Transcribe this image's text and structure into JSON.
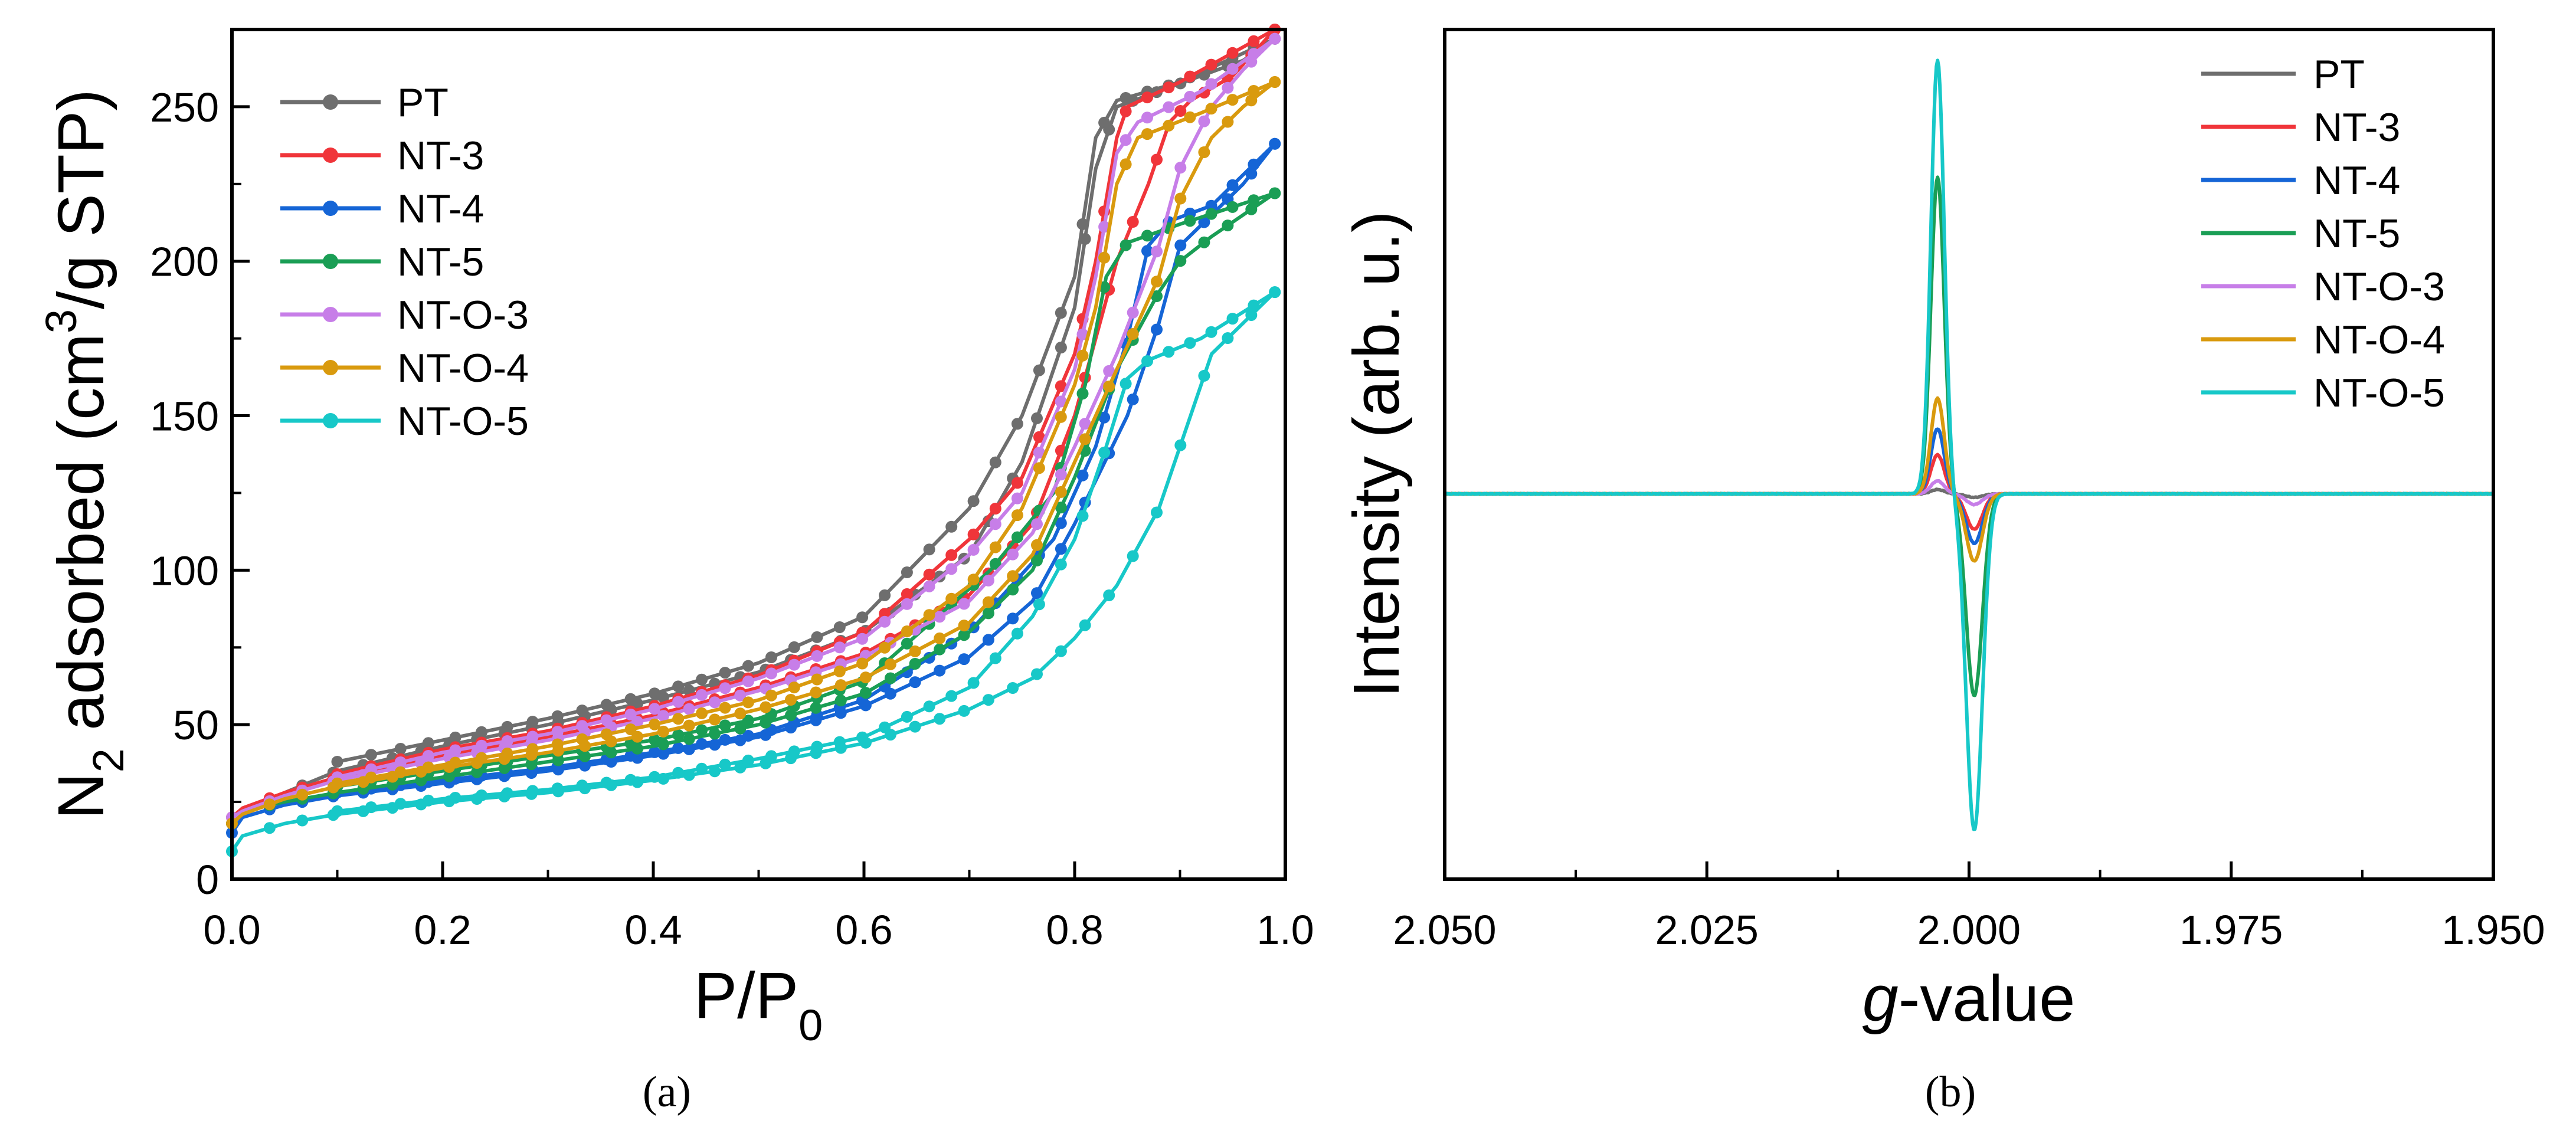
{
  "chart_data": [
    {
      "panel": "(a)",
      "type": "line",
      "title": "",
      "xlabel": "P/P",
      "xlabel_sub": "0",
      "ylabel_prefix": "N",
      "ylabel_sub": "2",
      "ylabel_mid": " adsorbed (cm",
      "ylabel_sup": "3",
      "ylabel_suffix": "/g STP)",
      "xlim": [
        0,
        1.0
      ],
      "ylim": [
        0,
        275
      ],
      "xticks": [
        "0.0",
        "0.2",
        "0.4",
        "0.6",
        "0.8",
        "1.0"
      ],
      "yticks": [
        "0",
        "50",
        "100",
        "150",
        "200",
        "250"
      ],
      "markers": true,
      "legend_position": "top-left",
      "series": [
        {
          "name": "PT",
          "color": "#6e6e6e",
          "adsorption": [
            [
              0,
              18
            ],
            [
              0.01,
              22
            ],
            [
              0.05,
              28
            ],
            [
              0.1,
              35
            ],
            [
              0.2,
              43
            ],
            [
              0.3,
              50
            ],
            [
              0.4,
              58
            ],
            [
              0.5,
              67
            ],
            [
              0.6,
              80
            ],
            [
              0.7,
              105
            ],
            [
              0.75,
              135
            ],
            [
              0.8,
              185
            ],
            [
              0.82,
              230
            ],
            [
              0.84,
              250
            ],
            [
              0.88,
              255
            ],
            [
              0.92,
              260
            ],
            [
              0.96,
              265
            ],
            [
              0.99,
              272
            ]
          ],
          "desorption": [
            [
              0.99,
              272
            ],
            [
              0.9,
              258
            ],
            [
              0.84,
              252
            ],
            [
              0.82,
              240
            ],
            [
              0.8,
              195
            ],
            [
              0.75,
              150
            ],
            [
              0.7,
              120
            ],
            [
              0.6,
              85
            ],
            [
              0.5,
              70
            ],
            [
              0.4,
              60
            ],
            [
              0.3,
              52
            ],
            [
              0.2,
              45
            ],
            [
              0.1,
              38
            ]
          ]
        },
        {
          "name": "NT-3",
          "color": "#f0353a",
          "adsorption": [
            [
              0,
              20
            ],
            [
              0.01,
              23
            ],
            [
              0.05,
              28
            ],
            [
              0.1,
              33
            ],
            [
              0.2,
              40
            ],
            [
              0.3,
              46
            ],
            [
              0.4,
              53
            ],
            [
              0.5,
              62
            ],
            [
              0.6,
              73
            ],
            [
              0.7,
              92
            ],
            [
              0.76,
              115
            ],
            [
              0.8,
              150
            ],
            [
              0.84,
              200
            ],
            [
              0.87,
              225
            ],
            [
              0.89,
              245
            ],
            [
              0.91,
              252
            ],
            [
              0.95,
              260
            ],
            [
              0.99,
              275
            ]
          ],
          "desorption": [
            [
              0.99,
              275
            ],
            [
              0.9,
              258
            ],
            [
              0.85,
              250
            ],
            [
              0.84,
              240
            ],
            [
              0.82,
              200
            ],
            [
              0.8,
              170
            ],
            [
              0.75,
              130
            ],
            [
              0.7,
              110
            ],
            [
              0.6,
              80
            ],
            [
              0.5,
              66
            ],
            [
              0.4,
              56
            ],
            [
              0.3,
              48
            ],
            [
              0.2,
              42
            ],
            [
              0.1,
              34
            ]
          ]
        },
        {
          "name": "NT-4",
          "color": "#1565d6",
          "adsorption": [
            [
              0,
              15
            ],
            [
              0.01,
              20
            ],
            [
              0.05,
              24
            ],
            [
              0.1,
              27
            ],
            [
              0.2,
              31
            ],
            [
              0.3,
              35
            ],
            [
              0.4,
              40
            ],
            [
              0.5,
              46
            ],
            [
              0.6,
              56
            ],
            [
              0.7,
              72
            ],
            [
              0.76,
              90
            ],
            [
              0.8,
              115
            ],
            [
              0.85,
              150
            ],
            [
              0.88,
              180
            ],
            [
              0.9,
              205
            ],
            [
              0.93,
              215
            ],
            [
              0.96,
              225
            ],
            [
              0.99,
              238
            ]
          ],
          "desorption": [
            [
              0.99,
              238
            ],
            [
              0.93,
              218
            ],
            [
              0.89,
              213
            ],
            [
              0.87,
              205
            ],
            [
              0.85,
              175
            ],
            [
              0.82,
              140
            ],
            [
              0.78,
              110
            ],
            [
              0.7,
              80
            ],
            [
              0.6,
              58
            ],
            [
              0.5,
              47
            ],
            [
              0.4,
              41
            ],
            [
              0.3,
              36
            ],
            [
              0.2,
              32
            ],
            [
              0.1,
              28
            ]
          ]
        },
        {
          "name": "NT-5",
          "color": "#1a9e55",
          "adsorption": [
            [
              0,
              18
            ],
            [
              0.01,
              22
            ],
            [
              0.05,
              25
            ],
            [
              0.1,
              28
            ],
            [
              0.2,
              33
            ],
            [
              0.3,
              38
            ],
            [
              0.4,
              43
            ],
            [
              0.5,
              50
            ],
            [
              0.6,
              60
            ],
            [
              0.7,
              80
            ],
            [
              0.76,
              100
            ],
            [
              0.8,
              130
            ],
            [
              0.84,
              165
            ],
            [
              0.88,
              190
            ],
            [
              0.9,
              200
            ],
            [
              0.93,
              208
            ],
            [
              0.96,
              215
            ],
            [
              0.99,
              222
            ]
          ],
          "desorption": [
            [
              0.99,
              222
            ],
            [
              0.9,
              212
            ],
            [
              0.85,
              206
            ],
            [
              0.83,
              195
            ],
            [
              0.81,
              160
            ],
            [
              0.78,
              125
            ],
            [
              0.72,
              100
            ],
            [
              0.6,
              64
            ],
            [
              0.5,
              52
            ],
            [
              0.4,
              45
            ],
            [
              0.3,
              40
            ],
            [
              0.2,
              35
            ],
            [
              0.1,
              30
            ]
          ]
        },
        {
          "name": "NT-O-3",
          "color": "#c77ee8",
          "adsorption": [
            [
              0,
              20
            ],
            [
              0.01,
              22
            ],
            [
              0.05,
              27
            ],
            [
              0.1,
              32
            ],
            [
              0.2,
              39
            ],
            [
              0.3,
              45
            ],
            [
              0.4,
              52
            ],
            [
              0.5,
              61
            ],
            [
              0.6,
              72
            ],
            [
              0.7,
              90
            ],
            [
              0.76,
              112
            ],
            [
              0.8,
              140
            ],
            [
              0.84,
              170
            ],
            [
              0.88,
              205
            ],
            [
              0.9,
              230
            ],
            [
              0.93,
              250
            ],
            [
              0.96,
              262
            ],
            [
              0.99,
              272
            ]
          ],
          "desorption": [
            [
              0.99,
              272
            ],
            [
              0.92,
              255
            ],
            [
              0.86,
              245
            ],
            [
              0.84,
              235
            ],
            [
              0.82,
              195
            ],
            [
              0.8,
              165
            ],
            [
              0.75,
              125
            ],
            [
              0.7,
              105
            ],
            [
              0.6,
              78
            ],
            [
              0.5,
              65
            ],
            [
              0.4,
              55
            ],
            [
              0.3,
              47
            ],
            [
              0.2,
              41
            ],
            [
              0.1,
              33
            ]
          ]
        },
        {
          "name": "NT-O-4",
          "color": "#d99a0e",
          "adsorption": [
            [
              0,
              18
            ],
            [
              0.01,
              21
            ],
            [
              0.05,
              26
            ],
            [
              0.1,
              30
            ],
            [
              0.2,
              36
            ],
            [
              0.3,
              41
            ],
            [
              0.4,
              47
            ],
            [
              0.5,
              55
            ],
            [
              0.6,
              65
            ],
            [
              0.7,
              83
            ],
            [
              0.76,
              105
            ],
            [
              0.8,
              135
            ],
            [
              0.84,
              165
            ],
            [
              0.88,
              195
            ],
            [
              0.9,
              220
            ],
            [
              0.93,
              240
            ],
            [
              0.96,
              250
            ],
            [
              0.99,
              258
            ]
          ],
          "desorption": [
            [
              0.99,
              258
            ],
            [
              0.92,
              248
            ],
            [
              0.86,
              240
            ],
            [
              0.84,
              225
            ],
            [
              0.82,
              185
            ],
            [
              0.8,
              160
            ],
            [
              0.75,
              120
            ],
            [
              0.7,
              95
            ],
            [
              0.6,
              70
            ],
            [
              0.5,
              58
            ],
            [
              0.4,
              50
            ],
            [
              0.3,
              43
            ],
            [
              0.2,
              37
            ],
            [
              0.1,
              31
            ]
          ]
        },
        {
          "name": "NT-O-5",
          "color": "#17c8c8",
          "adsorption": [
            [
              0,
              9
            ],
            [
              0.01,
              14
            ],
            [
              0.05,
              18
            ],
            [
              0.1,
              21
            ],
            [
              0.2,
              25
            ],
            [
              0.3,
              28
            ],
            [
              0.4,
              32
            ],
            [
              0.5,
              37
            ],
            [
              0.6,
              44
            ],
            [
              0.7,
              55
            ],
            [
              0.76,
              65
            ],
            [
              0.8,
              78
            ],
            [
              0.84,
              95
            ],
            [
              0.88,
              120
            ],
            [
              0.91,
              150
            ],
            [
              0.93,
              170
            ],
            [
              0.96,
              180
            ],
            [
              0.99,
              190
            ]
          ],
          "desorption": [
            [
              0.99,
              190
            ],
            [
              0.92,
              175
            ],
            [
              0.87,
              168
            ],
            [
              0.85,
              162
            ],
            [
              0.83,
              140
            ],
            [
              0.8,
              110
            ],
            [
              0.76,
              85
            ],
            [
              0.7,
              62
            ],
            [
              0.6,
              46
            ],
            [
              0.5,
              39
            ],
            [
              0.4,
              33
            ],
            [
              0.3,
              29
            ],
            [
              0.2,
              26
            ],
            [
              0.1,
              22
            ]
          ]
        }
      ]
    },
    {
      "panel": "(b)",
      "type": "line",
      "title": "",
      "xlabel_italic": "g",
      "xlabel_rest": "-value",
      "ylabel": "Intensity (arb. u.)",
      "xlim": [
        2.05,
        1.95
      ],
      "xticks": [
        "2.050",
        "2.025",
        "2.000",
        "1.975",
        "1.950"
      ],
      "ylim": [
        -1,
        1
      ],
      "y_ticks_labeled": false,
      "legend_position": "top-right",
      "baseline": 0,
      "signal_center_g": 2.0013,
      "series": [
        {
          "name": "PT",
          "color": "#6e6e6e",
          "pos_peak_g": 2.003,
          "pos_amp": 0.01,
          "neg_peak_g": 1.9995,
          "neg_amp": -0.01
        },
        {
          "name": "NT-3",
          "color": "#f0353a",
          "pos_peak_g": 2.003,
          "pos_amp": 0.09,
          "neg_peak_g": 1.9995,
          "neg_amp": -0.1
        },
        {
          "name": "NT-4",
          "color": "#1565d6",
          "pos_peak_g": 2.003,
          "pos_amp": 0.15,
          "neg_peak_g": 1.9995,
          "neg_amp": -0.14
        },
        {
          "name": "NT-5",
          "color": "#1a9e55",
          "pos_peak_g": 2.003,
          "pos_amp": 0.73,
          "neg_peak_g": 1.9995,
          "neg_amp": -0.57
        },
        {
          "name": "NT-O-3",
          "color": "#c77ee8",
          "pos_peak_g": 2.003,
          "pos_amp": 0.03,
          "neg_peak_g": 1.9995,
          "neg_amp": -0.03
        },
        {
          "name": "NT-O-4",
          "color": "#d99a0e",
          "pos_peak_g": 2.003,
          "pos_amp": 0.22,
          "neg_peak_g": 1.9995,
          "neg_amp": -0.19
        },
        {
          "name": "NT-O-5",
          "color": "#17c8c8",
          "pos_peak_g": 2.003,
          "pos_amp": 1.0,
          "neg_peak_g": 1.9995,
          "neg_amp": -0.95
        }
      ]
    }
  ]
}
